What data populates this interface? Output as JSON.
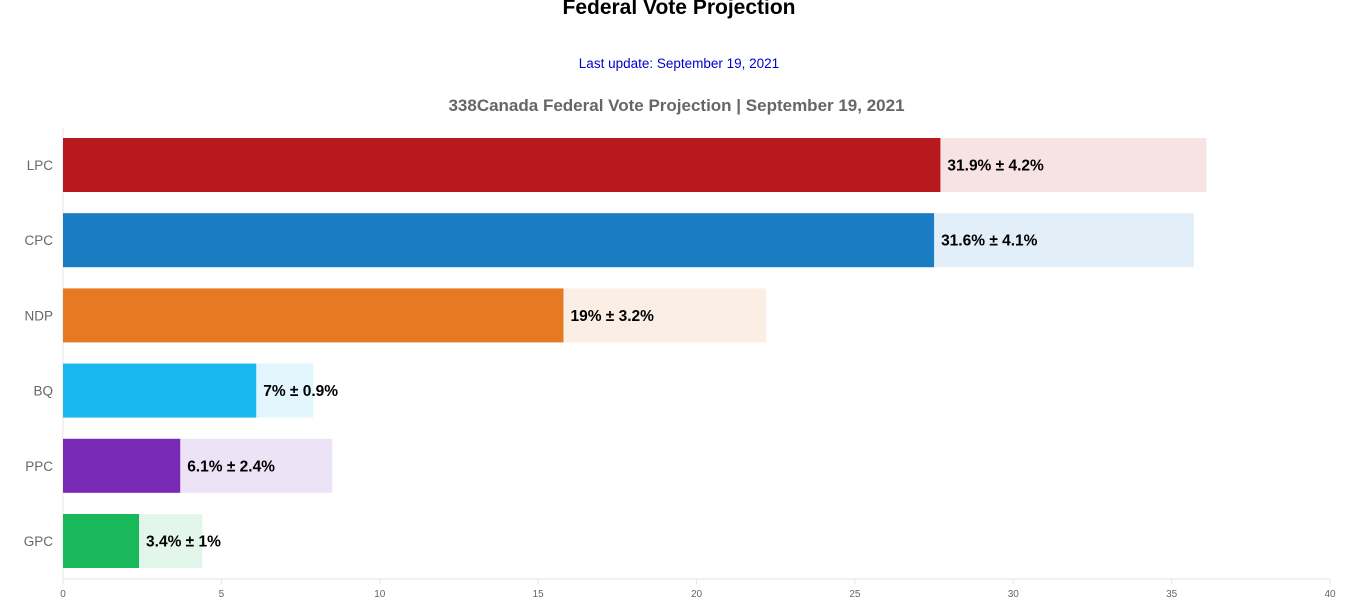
{
  "header": {
    "title": "Federal Vote Projection",
    "last_update": "Last update: September 19, 2021"
  },
  "chart_data": {
    "type": "bar",
    "orientation": "horizontal",
    "title": "338Canada Federal Vote Projection | September 19, 2021",
    "categories": [
      "LPC",
      "CPC",
      "NDP",
      "BQ",
      "PPC",
      "GPC"
    ],
    "series": [
      {
        "values": [
          27.7,
          27.5,
          15.8,
          6.1,
          3.7,
          2.4
        ]
      },
      {
        "values": [
          36.1,
          35.7,
          22.2,
          7.9,
          8.5,
          4.4
        ]
      }
    ],
    "labels": [
      "31.9% ± 4.2%",
      "31.6% ± 4.1%",
      "19% ± 3.2%",
      "7% ± 0.9%",
      "6.1% ± 2.4%",
      "3.4% ± 1%"
    ],
    "colors": [
      "#b7191c",
      "#1a7dc4",
      "#e57a22",
      "#1ab8f0",
      "#782ab6",
      "#19b95b"
    ],
    "range_colors": [
      "#f7e3e3",
      "#e2eef8",
      "#fbeee4",
      "#e3f6fd",
      "#ede3f6",
      "#e3f6eb"
    ],
    "xlim": [
      0,
      40
    ],
    "xticks": [
      "0",
      "5",
      "10",
      "15",
      "20",
      "25",
      "30",
      "35",
      "40"
    ],
    "grid": false
  }
}
